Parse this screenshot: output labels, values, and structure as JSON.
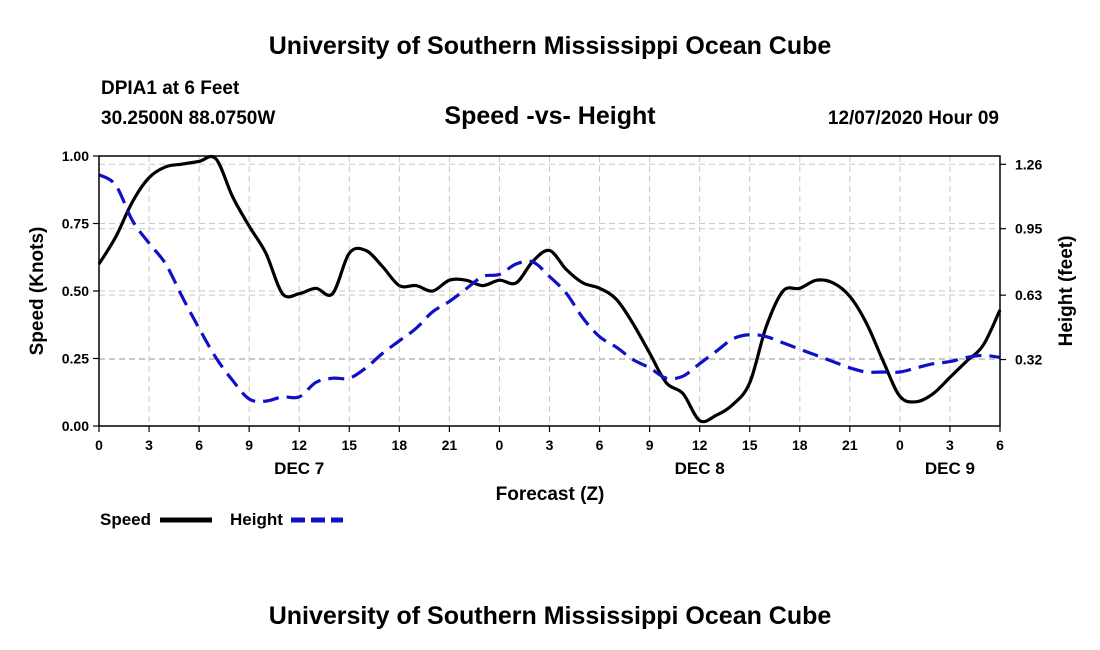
{
  "header": {
    "title": "University of Southern Mississippi Ocean Cube",
    "station": "DPIA1 at 6 Feet",
    "coords": "30.2500N 88.0750W",
    "chart_title": "Speed -vs- Height",
    "run": "12/07/2020 Hour 09"
  },
  "footer": {
    "title": "University of Southern Mississippi Ocean Cube"
  },
  "colors": {
    "speed": "#000000",
    "height": "#1010c8"
  },
  "chart_data": {
    "type": "line",
    "title": "Speed -vs- Height",
    "xlabel": "Forecast (Z)",
    "ylabel": "Speed (Knots)",
    "y2label": "Height (feet)",
    "xlim": [
      0,
      54
    ],
    "ylim": [
      0,
      1.0
    ],
    "y2lim": [
      0,
      1.3
    ],
    "grid": true,
    "x_ticks": [
      {
        "x": 0,
        "label": "0"
      },
      {
        "x": 3,
        "label": "3"
      },
      {
        "x": 6,
        "label": "6"
      },
      {
        "x": 9,
        "label": "9"
      },
      {
        "x": 12,
        "label": "12"
      },
      {
        "x": 15,
        "label": "15"
      },
      {
        "x": 18,
        "label": "18"
      },
      {
        "x": 21,
        "label": "21"
      },
      {
        "x": 24,
        "label": "0"
      },
      {
        "x": 27,
        "label": "3"
      },
      {
        "x": 30,
        "label": "6"
      },
      {
        "x": 33,
        "label": "9"
      },
      {
        "x": 36,
        "label": "12"
      },
      {
        "x": 39,
        "label": "15"
      },
      {
        "x": 42,
        "label": "18"
      },
      {
        "x": 45,
        "label": "21"
      },
      {
        "x": 48,
        "label": "0"
      },
      {
        "x": 51,
        "label": "3"
      },
      {
        "x": 54,
        "label": "6"
      }
    ],
    "day_labels": [
      {
        "x": 12,
        "label": "DEC 7"
      },
      {
        "x": 36,
        "label": "DEC 8"
      },
      {
        "x": 51,
        "label": "DEC 9"
      }
    ],
    "y_ticks": [
      {
        "v": 0.0,
        "label": "0.00"
      },
      {
        "v": 0.25,
        "label": "0.25"
      },
      {
        "v": 0.5,
        "label": "0.50"
      },
      {
        "v": 0.75,
        "label": "0.75"
      },
      {
        "v": 1.0,
        "label": "1.00"
      }
    ],
    "y2_ticks": [
      {
        "v": 0.32,
        "label": "0.32"
      },
      {
        "v": 0.63,
        "label": "0.63"
      },
      {
        "v": 0.95,
        "label": "0.95"
      },
      {
        "v": 1.26,
        "label": "1.26"
      }
    ],
    "legend": [
      {
        "name": "Speed",
        "style": "solid"
      },
      {
        "name": "Height",
        "style": "dashed"
      }
    ],
    "series": [
      {
        "name": "Speed",
        "axis": "left",
        "style": "solid",
        "x": [
          0,
          1,
          2,
          3,
          4,
          5,
          6,
          7,
          8,
          9,
          10,
          11,
          12,
          13,
          14,
          15,
          16,
          17,
          18,
          19,
          20,
          21,
          22,
          23,
          24,
          25,
          26,
          27,
          28,
          29,
          30,
          31,
          32,
          33,
          34,
          35,
          36,
          37,
          38,
          39,
          40,
          41,
          42,
          43,
          44,
          45,
          46,
          47,
          48,
          49,
          50,
          51,
          52,
          53,
          54
        ],
        "values": [
          0.6,
          0.7,
          0.83,
          0.92,
          0.96,
          0.97,
          0.98,
          0.99,
          0.85,
          0.74,
          0.64,
          0.49,
          0.49,
          0.51,
          0.49,
          0.64,
          0.65,
          0.59,
          0.52,
          0.52,
          0.5,
          0.54,
          0.54,
          0.52,
          0.54,
          0.53,
          0.61,
          0.65,
          0.58,
          0.53,
          0.51,
          0.47,
          0.38,
          0.27,
          0.16,
          0.12,
          0.02,
          0.04,
          0.08,
          0.16,
          0.37,
          0.5,
          0.51,
          0.54,
          0.53,
          0.48,
          0.38,
          0.24,
          0.11,
          0.09,
          0.12,
          0.18,
          0.24,
          0.3,
          0.43
        ]
      },
      {
        "name": "Height",
        "axis": "right",
        "style": "dashed",
        "x": [
          0,
          1,
          2,
          3,
          4,
          5,
          6,
          7,
          8,
          9,
          10,
          11,
          12,
          13,
          14,
          15,
          16,
          17,
          18,
          19,
          20,
          21,
          22,
          23,
          24,
          25,
          26,
          27,
          28,
          29,
          30,
          31,
          32,
          33,
          34,
          35,
          36,
          37,
          38,
          39,
          40,
          41,
          42,
          43,
          44,
          45,
          46,
          47,
          48,
          49,
          50,
          51,
          52,
          53,
          54
        ],
        "values": [
          1.21,
          1.16,
          0.99,
          0.88,
          0.78,
          0.62,
          0.47,
          0.33,
          0.22,
          0.13,
          0.12,
          0.14,
          0.14,
          0.21,
          0.23,
          0.23,
          0.28,
          0.35,
          0.41,
          0.47,
          0.55,
          0.6,
          0.66,
          0.72,
          0.73,
          0.78,
          0.79,
          0.72,
          0.64,
          0.52,
          0.43,
          0.38,
          0.32,
          0.28,
          0.23,
          0.24,
          0.3,
          0.36,
          0.42,
          0.44,
          0.43,
          0.4,
          0.37,
          0.34,
          0.31,
          0.28,
          0.26,
          0.26,
          0.26,
          0.28,
          0.3,
          0.31,
          0.33,
          0.34,
          0.33
        ]
      }
    ]
  }
}
